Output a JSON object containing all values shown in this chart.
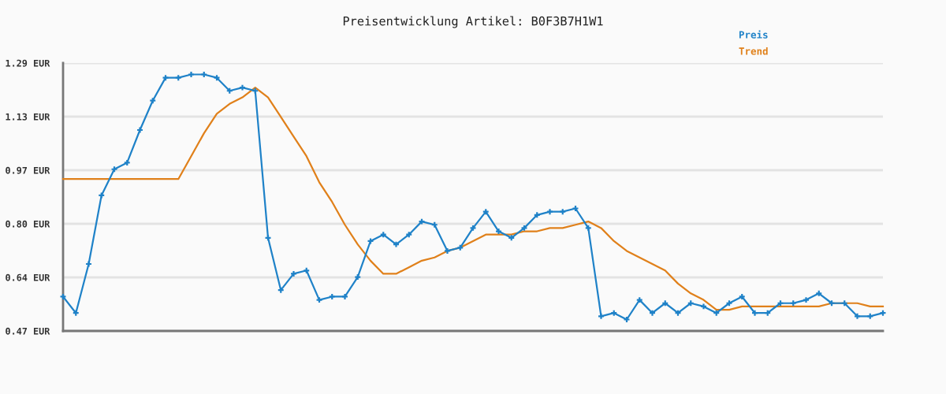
{
  "chart_data": {
    "type": "line",
    "title": "Preisentwicklung Artikel: B0F3B7H1W1",
    "categories": [
      null,
      null,
      null,
      null,
      null,
      null,
      null,
      null,
      null,
      null,
      null,
      null,
      null,
      null,
      null,
      null,
      null,
      null,
      null,
      null,
      null,
      null,
      null,
      null,
      null,
      null,
      null,
      null,
      null,
      null,
      null,
      null,
      null,
      null,
      null,
      null,
      null,
      null,
      null,
      null,
      null,
      null,
      null,
      null,
      null,
      null,
      null,
      null,
      null,
      null,
      null,
      null,
      null,
      null,
      null,
      null,
      null,
      null,
      null,
      null,
      null,
      null,
      null,
      null,
      null
    ],
    "series": [
      {
        "name": "Preis",
        "color": "#1f82c8",
        "marker": "cross",
        "values": [
          0.58,
          0.53,
          0.68,
          0.89,
          0.97,
          0.99,
          1.09,
          1.18,
          1.25,
          1.25,
          1.26,
          1.26,
          1.25,
          1.21,
          1.22,
          1.21,
          0.76,
          0.6,
          0.65,
          0.66,
          0.57,
          0.58,
          0.58,
          0.64,
          0.75,
          0.77,
          0.74,
          0.77,
          0.81,
          0.8,
          0.72,
          0.73,
          0.79,
          0.84,
          0.78,
          0.76,
          0.79,
          0.83,
          0.84,
          0.84,
          0.85,
          0.79,
          0.52,
          0.53,
          0.51,
          0.57,
          0.53,
          0.56,
          0.53,
          0.56,
          0.55,
          0.53,
          0.56,
          0.58,
          0.53,
          0.53,
          0.56,
          0.56,
          0.57,
          0.59,
          0.56,
          0.56,
          0.52,
          0.52,
          0.53
        ]
      },
      {
        "name": "Trend",
        "color": "#e0801a",
        "values": [
          0.94,
          0.94,
          0.94,
          0.94,
          0.94,
          0.94,
          0.94,
          0.94,
          0.94,
          0.94,
          1.01,
          1.08,
          1.14,
          1.17,
          1.19,
          1.22,
          1.19,
          1.13,
          1.07,
          1.01,
          0.93,
          0.87,
          0.8,
          0.74,
          0.69,
          0.65,
          0.65,
          0.67,
          0.69,
          0.7,
          0.72,
          0.73,
          0.75,
          0.77,
          0.77,
          0.77,
          0.78,
          0.78,
          0.79,
          0.79,
          0.8,
          0.81,
          0.79,
          0.75,
          0.72,
          0.7,
          0.68,
          0.66,
          0.62,
          0.59,
          0.57,
          0.54,
          0.54,
          0.55,
          0.55,
          0.55,
          0.55,
          0.55,
          0.55,
          0.55,
          0.56,
          0.56,
          0.56,
          0.55,
          0.55
        ]
      }
    ],
    "ylim": [
      0.475,
      1.295
    ],
    "yticks": [
      {
        "value": 0.475,
        "label": "0.47 EUR"
      },
      {
        "value": 0.639,
        "label": "0.64 EUR"
      },
      {
        "value": 0.803,
        "label": "0.80 EUR"
      },
      {
        "value": 0.967,
        "label": "0.97 EUR"
      },
      {
        "value": 1.131,
        "label": "1.13 EUR"
      },
      {
        "value": 1.295,
        "label": "1.29 EUR"
      }
    ],
    "grid": "y",
    "legend": "top right",
    "tick_labels": "y"
  }
}
